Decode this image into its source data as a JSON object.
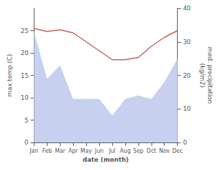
{
  "chart_data": {
    "type": "line",
    "xlabel": "date (month)",
    "ylabel": "max temp (C)",
    "y2label": "med. precipitation\n(kg/m2)",
    "categories": [
      "Jan",
      "Feb",
      "Mar",
      "Apr",
      "May",
      "Jun",
      "Jul",
      "Aug",
      "Sep",
      "Oct",
      "Nov",
      "Dec"
    ],
    "series": [
      {
        "type": "area",
        "axis": "y2",
        "color": "#c8d0f0",
        "values": [
          33,
          19,
          23,
          13,
          13,
          13,
          8,
          13,
          14,
          13,
          18,
          25
        ]
      },
      {
        "type": "line",
        "color": "#c85a5a",
        "values": [
          25.5,
          24.8,
          25.2,
          24.5,
          22.5,
          20.5,
          18.5,
          18.5,
          19.0,
          21.5,
          23.5,
          25.0
        ]
      }
    ],
    "ylim": [
      0,
      30
    ],
    "yticks": [
      0,
      5,
      10,
      15,
      20,
      25
    ],
    "y2lim": [
      0,
      40
    ],
    "y2ticks": [
      0,
      10,
      20,
      30,
      40
    ],
    "grid": false
  }
}
